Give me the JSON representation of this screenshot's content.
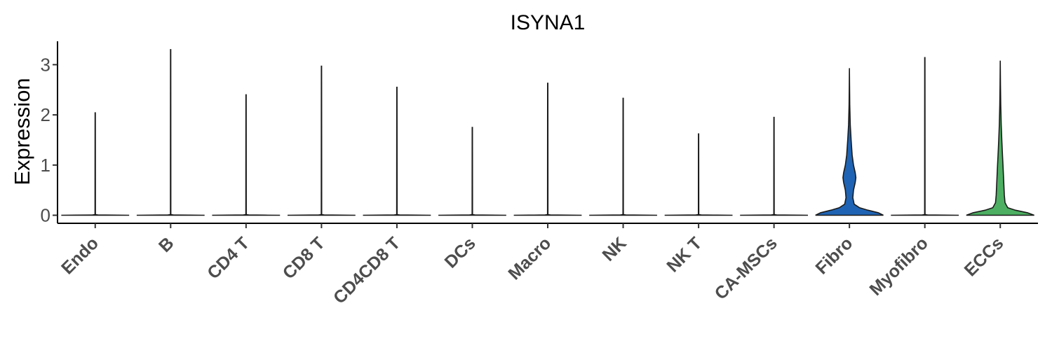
{
  "chart_data": {
    "type": "violin",
    "title": "ISYNA1",
    "xlabel": "",
    "ylabel": "Expression",
    "ylim": [
      -0.15,
      3.45
    ],
    "yticks": [
      "0",
      "1",
      "2",
      "3"
    ],
    "grid": false,
    "legend": "none",
    "categories": [
      "Endo",
      "B",
      "CD4 T",
      "CD8 T",
      "CD4CD8 T",
      "DCs",
      "Macro",
      "NK",
      "NK T",
      "CA-MSCs",
      "Fibro",
      "Myofibro",
      "ECCs"
    ],
    "max_values": [
      2.04,
      3.3,
      2.4,
      2.97,
      2.55,
      1.75,
      2.63,
      2.33,
      1.62,
      1.95,
      2.93,
      3.14,
      3.08
    ],
    "fill_colors": [
      "#ffffff",
      "#ffffff",
      "#ffffff",
      "#ffffff",
      "#ffffff",
      "#ffffff",
      "#ffffff",
      "#ffffff",
      "#ffffff",
      "#ffffff",
      "#1f64b4",
      "#ffffff",
      "#4daf62"
    ],
    "density_profiles": {
      "Fibro": [
        [
          0.0,
          1.0
        ],
        [
          0.05,
          0.85
        ],
        [
          0.1,
          0.55
        ],
        [
          0.15,
          0.3
        ],
        [
          0.22,
          0.14
        ],
        [
          0.35,
          0.1
        ],
        [
          0.5,
          0.12
        ],
        [
          0.65,
          0.17
        ],
        [
          0.75,
          0.19
        ],
        [
          0.85,
          0.17
        ],
        [
          1.0,
          0.12
        ],
        [
          1.2,
          0.08
        ],
        [
          1.5,
          0.05
        ],
        [
          1.8,
          0.025
        ],
        [
          2.2,
          0.01
        ],
        [
          2.6,
          0.004
        ],
        [
          2.93,
          0.0
        ]
      ],
      "ECCs": [
        [
          0.0,
          1.0
        ],
        [
          0.05,
          0.8
        ],
        [
          0.1,
          0.45
        ],
        [
          0.15,
          0.22
        ],
        [
          0.25,
          0.14
        ],
        [
          0.4,
          0.12
        ],
        [
          0.55,
          0.11
        ],
        [
          0.7,
          0.1
        ],
        [
          0.85,
          0.09
        ],
        [
          1.0,
          0.08
        ],
        [
          1.2,
          0.065
        ],
        [
          1.5,
          0.045
        ],
        [
          1.8,
          0.028
        ],
        [
          2.2,
          0.014
        ],
        [
          2.6,
          0.006
        ],
        [
          3.08,
          0.0
        ]
      ]
    }
  }
}
